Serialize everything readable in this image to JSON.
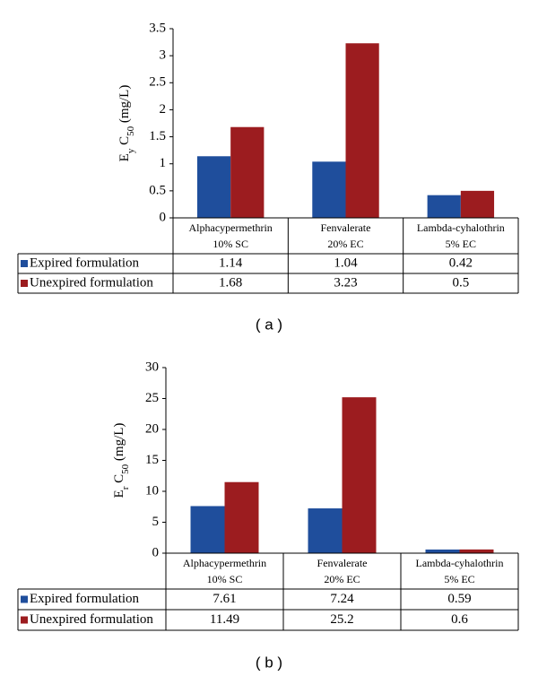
{
  "chart_data": [
    {
      "type": "bar",
      "y_label_parts": [
        {
          "text": "E",
          "sub": false
        },
        {
          "text": "y",
          "sub": true
        },
        {
          "text": " C",
          "sub": false
        },
        {
          "text": "50",
          "sub": true
        },
        {
          "text": "  (mg/L)",
          "sub": false
        }
      ],
      "categories": [
        "Alphacypermethrin\n10% SC",
        "Fenvalerate\n20% EC",
        "Lambda-cyhalothrin\n5% EC"
      ],
      "series": [
        {
          "name": "Expired formulation",
          "color": "#1f4e9c",
          "values": [
            1.14,
            1.04,
            0.42
          ]
        },
        {
          "name": "Unexpired formulation",
          "color": "#9c1c1f",
          "values": [
            1.68,
            3.23,
            0.5
          ]
        }
      ],
      "ylim": [
        0,
        3.5
      ],
      "yticks": [
        0,
        0.5,
        1,
        1.5,
        2,
        2.5,
        3,
        3.5
      ],
      "caption": "( a )"
    },
    {
      "type": "bar",
      "y_label_parts": [
        {
          "text": "E",
          "sub": false
        },
        {
          "text": "r",
          "sub": true
        },
        {
          "text": " C",
          "sub": false
        },
        {
          "text": "50",
          "sub": true
        },
        {
          "text": "  (mg/L)",
          "sub": false
        }
      ],
      "categories": [
        "Alphacypermethrin\n10% SC",
        "Fenvalerate\n20% EC",
        "Lambda-cyhalothrin\n5% EC"
      ],
      "series": [
        {
          "name": "Expired formulation",
          "color": "#1f4e9c",
          "values": [
            7.61,
            7.24,
            0.59
          ]
        },
        {
          "name": "Unexpired formulation",
          "color": "#9c1c1f",
          "values": [
            11.49,
            25.2,
            0.6
          ]
        }
      ],
      "ylim": [
        0,
        30
      ],
      "yticks": [
        0,
        5,
        10,
        15,
        20,
        25,
        30
      ],
      "caption": "( b )"
    }
  ]
}
